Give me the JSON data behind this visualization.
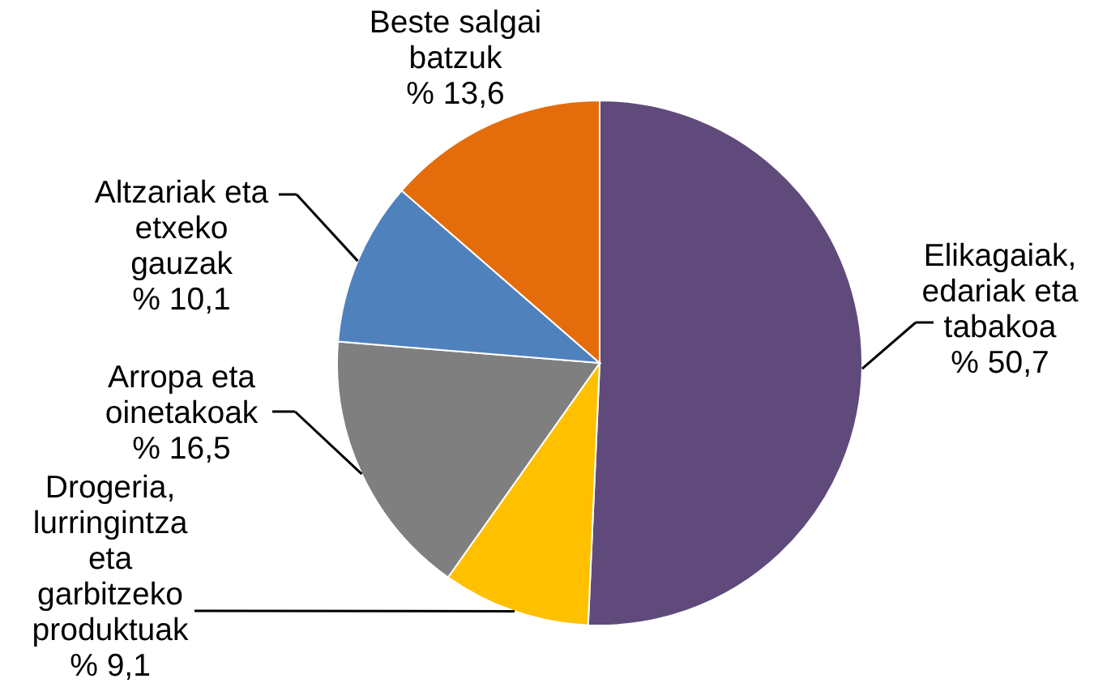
{
  "chart_data": {
    "type": "pie",
    "categories": [
      "Elikagaiak, edariak eta tabakoa",
      "Drogeria, lurringintza eta garbitzeko produktuak",
      "Arropa eta oinetakoak",
      "Altzariak eta etxeko gauzak",
      "Beste salgai batzuk"
    ],
    "values": [
      50.7,
      9.1,
      16.5,
      10.1,
      13.6
    ],
    "value_labels": [
      "% 50,7",
      "% 9,1",
      "% 16,5",
      "% 10,1",
      "% 13,6"
    ],
    "colors": [
      "#604a7b",
      "#ffc000",
      "#7f7f7f",
      "#4f81bd",
      "#e46c0a"
    ]
  }
}
